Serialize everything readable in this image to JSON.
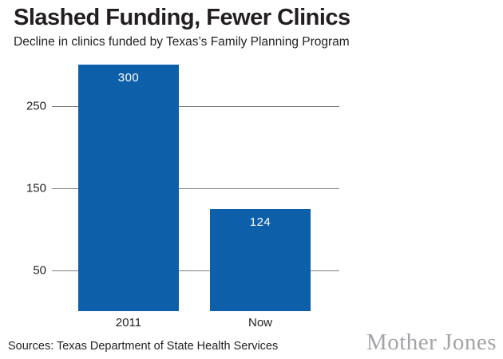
{
  "header": {
    "title": "Slashed Funding, Fewer Clinics",
    "subtitle": "Decline in clinics funded by Texas’s Family Planning Program"
  },
  "chart_data": {
    "type": "bar",
    "title": "Slashed Funding, Fewer Clinics",
    "subtitle": "Decline in clinics funded by Texas’s Family Planning Program",
    "categories": [
      "2011",
      "Now"
    ],
    "values": [
      300,
      124
    ],
    "value_labels": [
      "300",
      "124"
    ],
    "xlabel": "",
    "ylabel": "",
    "yticks": [
      250,
      150,
      50
    ],
    "ylim": [
      0,
      300
    ],
    "grid": true,
    "legend": "none",
    "bar_color": "#0e5fa9",
    "gridline_color": "#7f7f7f",
    "value_label_color": "#ffffff",
    "text_color": "#231f20"
  },
  "footer": {
    "sources": "Sources: Texas Department of State Health Services",
    "brand": "Mother Jones",
    "brand_color": "#a2a4a7"
  }
}
